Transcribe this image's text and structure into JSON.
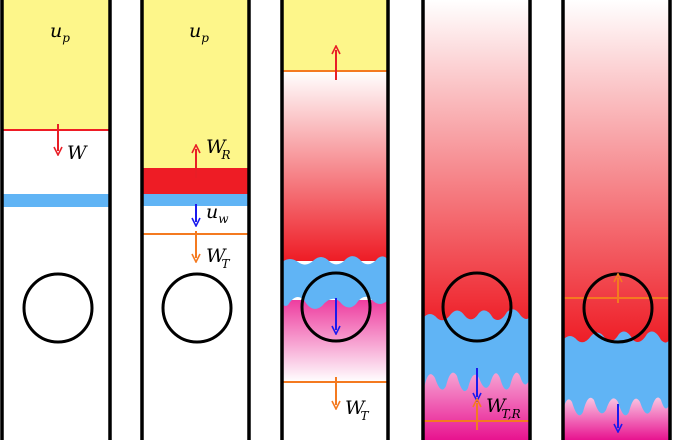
{
  "panels": [
    {
      "id": 1,
      "labels": {
        "top": "u",
        "top_sub": "p",
        "w": "W"
      }
    },
    {
      "id": 2,
      "labels": {
        "top": "u",
        "top_sub": "p",
        "wr": "W",
        "wr_sub": "R",
        "uw": "u",
        "uw_sub": "w",
        "wt": "W",
        "wt_sub": "T"
      }
    },
    {
      "id": 3,
      "labels": {
        "wt": "W",
        "wt_sub": "T"
      }
    },
    {
      "id": 4,
      "labels": {
        "wtr": "W",
        "wtr_sub": "T,R"
      }
    },
    {
      "id": 5,
      "labels": {}
    }
  ],
  "colors": {
    "yellow": "#fdf68a",
    "red": "#ee1c25",
    "blue": "#60b4f5",
    "magenta": "#ee3d9f",
    "orange": "#f47a20",
    "arrow_red": "#e81e26",
    "arrow_blue": "#1a1aee",
    "arrow_orange": "#f47a20",
    "frame": "#000000"
  }
}
